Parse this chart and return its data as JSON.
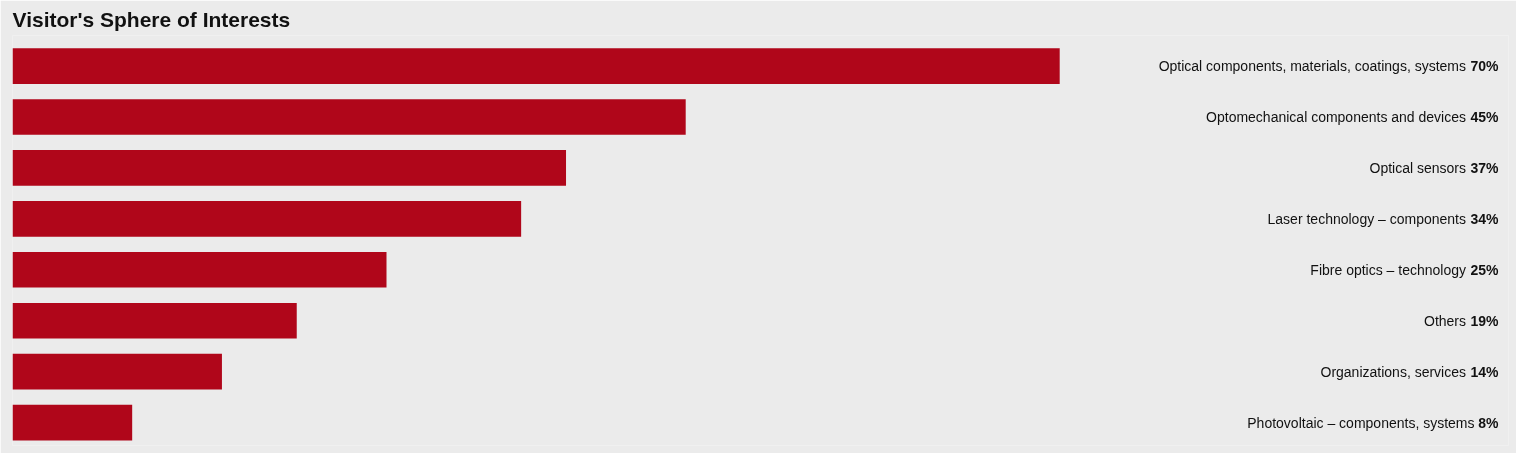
{
  "chart_data": {
    "type": "bar",
    "orientation": "horizontal",
    "title": "Visitor's Sphere of Interests",
    "categories": [
      "Optical components, materials, coatings, systems",
      "Optomechanical components and devices",
      "Optical sensors",
      "Laser technology – components",
      "Fibre optics – technology",
      "Others",
      "Organizations, services",
      "Photovoltaic – components, systems"
    ],
    "values": [
      70,
      45,
      37,
      34,
      25,
      19,
      14,
      8
    ],
    "value_labels": [
      "70%",
      "45%",
      "37%",
      "34%",
      "25%",
      "19%",
      "14%",
      "8%"
    ],
    "color": "#b0061a",
    "xlim": [
      0,
      100
    ],
    "grid": false,
    "tick_labels": false
  }
}
